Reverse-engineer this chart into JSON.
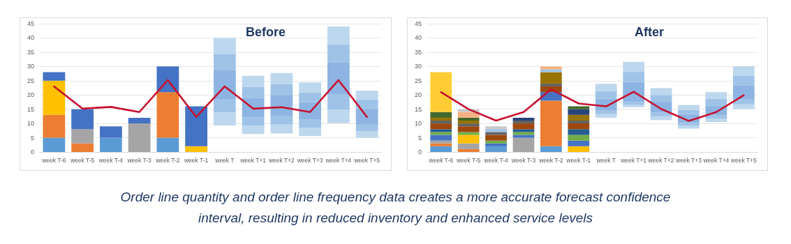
{
  "chart_data": [
    {
      "type": "bar",
      "title": "Before",
      "stacked": true,
      "grid": "y",
      "marker": "none",
      "line_style": "solid",
      "categories": [
        "week T-6",
        "week T-5",
        "week T-4",
        "week T-3",
        "week T-2",
        "week T-1",
        "week T",
        "week T+1",
        "week T+2",
        "week T+3",
        "week T+4",
        "week T+5"
      ],
      "ylim": [
        0,
        45
      ],
      "yticks": [
        0,
        5,
        10,
        15,
        20,
        25,
        30,
        35,
        40,
        45
      ],
      "series": [
        {
          "color": "#5b9bd5",
          "values": [
            5,
            null,
            5,
            null,
            5,
            null,
            null,
            null,
            null,
            null,
            null,
            null
          ]
        },
        {
          "color": "#ed7d31",
          "values": [
            8,
            3,
            null,
            null,
            16,
            null,
            null,
            null,
            null,
            null,
            null,
            null
          ]
        },
        {
          "color": "#a5a5a5",
          "values": [
            null,
            5,
            null,
            10,
            null,
            null,
            null,
            null,
            null,
            null,
            null,
            null
          ]
        },
        {
          "color": "#ffc000",
          "values": [
            12,
            null,
            null,
            null,
            null,
            2,
            null,
            null,
            null,
            null,
            null,
            null
          ]
        },
        {
          "color": "#4472c4",
          "values": [
            3,
            7,
            4,
            2,
            9,
            14,
            null,
            null,
            null,
            null,
            null,
            null
          ]
        },
        {
          "color": "#bdd7ee",
          "base": [
            null,
            null,
            null,
            null,
            null,
            null,
            9.3,
            6.3,
            6.5,
            5.6,
            10.1,
            5
          ],
          "values": [
            null,
            null,
            null,
            null,
            null,
            null,
            4.6,
            2.9,
            3.1,
            2.9,
            4.8,
            2.3
          ]
        },
        {
          "color": "#9fc3e7",
          "base": [
            null,
            null,
            null,
            null,
            null,
            null,
            13.9,
            9.2,
            9.6,
            8.5,
            14.9,
            7.3
          ],
          "values": [
            null,
            null,
            null,
            null,
            null,
            null,
            4.5,
            2.9,
            3.1,
            2.8,
            5.2,
            2.5
          ]
        },
        {
          "color": "#8db4e2",
          "base": [
            null,
            null,
            null,
            null,
            null,
            null,
            18.4,
            12.1,
            12.7,
            11.3,
            20.1,
            9.8
          ],
          "values": [
            null,
            null,
            null,
            null,
            null,
            null,
            10.2,
            6.9,
            7.1,
            6.2,
            11.4,
            5.5
          ]
        },
        {
          "color": "#9fc3e7",
          "base": [
            null,
            null,
            null,
            null,
            null,
            null,
            28.6,
            19.0,
            19.8,
            17.5,
            31.5,
            15.3
          ],
          "values": [
            null,
            null,
            null,
            null,
            null,
            null,
            5.8,
            3.8,
            3.9,
            3.4,
            6.2,
            3.1
          ]
        },
        {
          "color": "#bdd7ee",
          "base": [
            null,
            null,
            null,
            null,
            null,
            null,
            34.4,
            22.8,
            23.7,
            20.9,
            37.7,
            18.4
          ],
          "values": [
            null,
            null,
            null,
            null,
            null,
            null,
            5.6,
            3.9,
            4.0,
            3.5,
            6.3,
            3.1
          ]
        },
        {
          "type": "line",
          "color": "#c8102e",
          "values": [
            23,
            15.2,
            15.8,
            14,
            25.2,
            12.3,
            23,
            15.2,
            15.7,
            14,
            25.2,
            12.3
          ]
        }
      ],
      "annotations": [
        "Order line quantity and order line frequency data creates a more accurate forecast confidence interval, resulting in reduced inventory and enhanced service levels"
      ]
    },
    {
      "type": "bar",
      "title": "After",
      "stacked": true,
      "grid": "y",
      "marker": "none",
      "line_style": "solid",
      "categories": [
        "week T-6",
        "week T-5",
        "week T-4",
        "week T-3",
        "week T-2",
        "week T-1",
        "week T",
        "week T+1",
        "week T+2",
        "week T+3",
        "week T+4",
        "week T+5"
      ],
      "ylim": [
        0,
        45
      ],
      "yticks": [
        0,
        5,
        10,
        15,
        20,
        25,
        30,
        35,
        40,
        45
      ],
      "series": [
        {
          "color": "#5b9bd5",
          "values": [
            2,
            null,
            2,
            null,
            2,
            null,
            null,
            null,
            null,
            null,
            null,
            null
          ]
        },
        {
          "color": "#ed7d31",
          "values": [
            1,
            1,
            null,
            null,
            16,
            null,
            null,
            null,
            null,
            null,
            null,
            null
          ]
        },
        {
          "color": "#a5a5a5",
          "values": [
            1,
            2,
            null,
            5,
            null,
            null,
            null,
            null,
            null,
            null,
            null,
            null
          ]
        },
        {
          "color": "#ffc000",
          "values": [
            null,
            3,
            null,
            null,
            null,
            2,
            null,
            null,
            null,
            null,
            null,
            null
          ]
        },
        {
          "color": "#4472c4",
          "values": [
            2,
            null,
            1,
            1,
            3,
            2,
            null,
            null,
            null,
            null,
            null,
            null
          ]
        },
        {
          "color": "#70ad47",
          "values": [
            1,
            1,
            1,
            1,
            null,
            2,
            null,
            null,
            null,
            null,
            null,
            null
          ]
        },
        {
          "color": "#255e91",
          "values": [
            1,
            null,
            null,
            1,
            null,
            2,
            null,
            null,
            null,
            null,
            null,
            null
          ]
        },
        {
          "color": "#9e480e",
          "values": [
            2,
            2,
            2,
            2,
            2,
            2,
            null,
            null,
            null,
            null,
            null,
            null
          ]
        },
        {
          "color": "#636363",
          "values": [
            1,
            1,
            1,
            1,
            1,
            1,
            null,
            null,
            null,
            null,
            null,
            null
          ]
        },
        {
          "color": "#997300",
          "values": [
            1,
            1,
            null,
            null,
            4,
            2,
            null,
            null,
            null,
            null,
            null,
            null
          ]
        },
        {
          "color": "#264478",
          "values": [
            null,
            null,
            null,
            1,
            null,
            2,
            null,
            null,
            null,
            null,
            null,
            null
          ]
        },
        {
          "color": "#43682b",
          "values": [
            2,
            1,
            null,
            null,
            null,
            1,
            null,
            null,
            null,
            null,
            null,
            null
          ]
        },
        {
          "color": "#9dc3e6",
          "values": [
            null,
            null,
            1,
            null,
            1,
            null,
            null,
            null,
            null,
            null,
            null,
            null
          ]
        },
        {
          "color": "#f4b183",
          "values": [
            null,
            2,
            null,
            null,
            1,
            null,
            null,
            null,
            null,
            null,
            null,
            null
          ]
        },
        {
          "color": "#c9c9c9",
          "values": [
            null,
            1,
            1,
            null,
            null,
            null,
            null,
            null,
            null,
            null,
            null,
            null
          ]
        },
        {
          "color": "#ffcd33",
          "values": [
            14,
            null,
            null,
            null,
            null,
            null,
            null,
            null,
            null,
            null,
            null,
            null
          ]
        },
        {
          "color": "#bdd7ee",
          "base": [
            null,
            null,
            null,
            null,
            null,
            null,
            12.0,
            15.7,
            11.2,
            8.2,
            10.5,
            15.1
          ],
          "values": [
            null,
            null,
            null,
            null,
            null,
            null,
            1.3,
            0.8,
            1.3,
            1.1,
            1.2,
            1.6
          ]
        },
        {
          "color": "#9fc3e7",
          "base": [
            null,
            null,
            null,
            null,
            null,
            null,
            13.3,
            16.5,
            12.5,
            9.3,
            11.7,
            16.7
          ],
          "values": [
            null,
            null,
            null,
            null,
            null,
            null,
            1.2,
            1.0,
            1.4,
            0.9,
            1.1,
            1.7
          ]
        },
        {
          "color": "#8db4e2",
          "base": [
            null,
            null,
            null,
            null,
            null,
            null,
            14.5,
            17.5,
            13.9,
            10.2,
            12.8,
            18.4
          ],
          "values": [
            null,
            null,
            null,
            null,
            null,
            null,
            4.2,
            7.1,
            3.7,
            3.1,
            3.5,
            5.0
          ]
        },
        {
          "color": "#9fc3e7",
          "base": [
            null,
            null,
            null,
            null,
            null,
            null,
            18.7,
            24.6,
            17.6,
            13.3,
            16.3,
            23.4
          ],
          "values": [
            null,
            null,
            null,
            null,
            null,
            null,
            2.7,
            3.5,
            2.4,
            1.4,
            2.4,
            3.4
          ]
        },
        {
          "color": "#bdd7ee",
          "base": [
            null,
            null,
            null,
            null,
            null,
            null,
            21.4,
            28.1,
            20.0,
            14.7,
            18.7,
            26.8
          ],
          "values": [
            null,
            null,
            null,
            null,
            null,
            null,
            2.5,
            3.5,
            2.4,
            1.8,
            2.3,
            3.3
          ]
        },
        {
          "type": "line",
          "color": "#c8102e",
          "values": [
            21,
            15,
            11,
            14,
            22,
            17,
            16,
            21.1,
            15.1,
            10.9,
            14,
            19.9
          ]
        }
      ]
    }
  ]
}
